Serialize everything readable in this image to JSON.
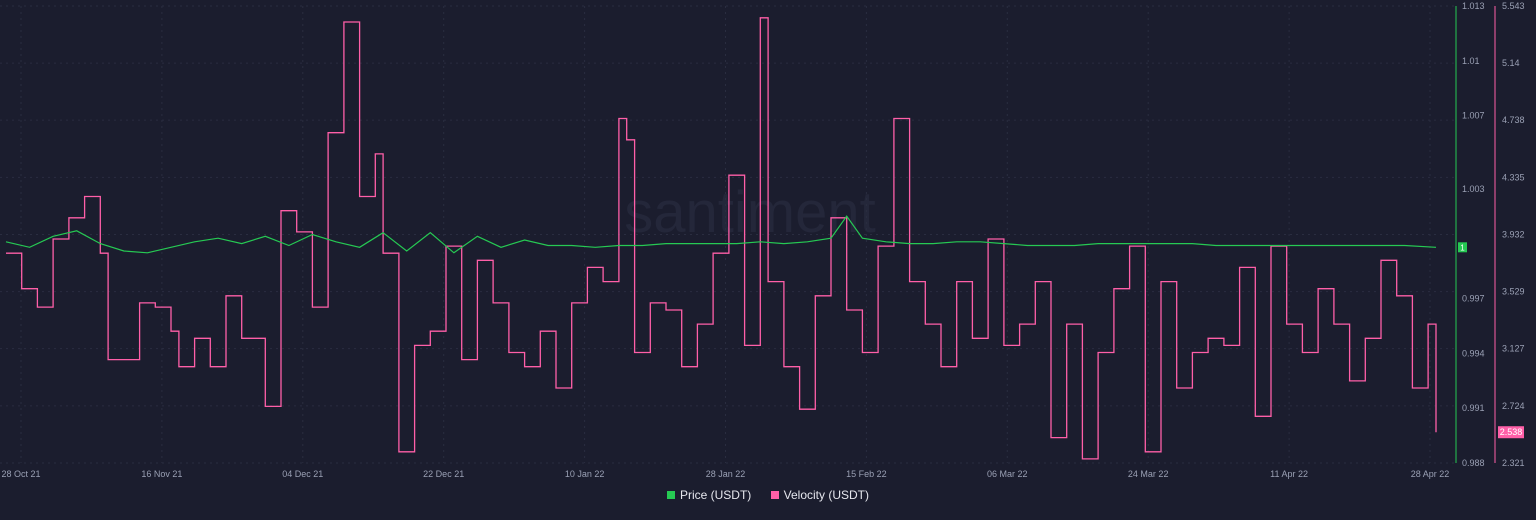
{
  "watermark": "santiment",
  "colors": {
    "background": "#1b1d2e",
    "price": "#26c953",
    "velocity": "#ff5fa8",
    "grid": "#2a2d40",
    "axis_text": "#9aa0b4"
  },
  "legend": {
    "price": "Price (USDT)",
    "velocity": "Velocity (USDT)"
  },
  "chart_data": {
    "type": "line",
    "x_ticks": [
      "28 Oct 21",
      "16 Nov 21",
      "04 Dec 21",
      "22 Dec 21",
      "10 Jan 22",
      "28 Jan 22",
      "15 Feb 22",
      "06 Mar 22",
      "24 Mar 22",
      "11 Apr 22",
      "28 Apr 22"
    ],
    "x_range": [
      "2021-10-28",
      "2022-04-28"
    ],
    "y_price": {
      "ticks": [
        "1.013",
        "1.01",
        "1.007",
        "1.003",
        "0.997",
        "0.994",
        "0.991",
        "0.988"
      ],
      "range": [
        0.988,
        1.013
      ]
    },
    "y_velocity": {
      "ticks": [
        "5.543",
        "5.14",
        "4.738",
        "4.335",
        "3.932",
        "3.529",
        "3.127",
        "2.724",
        "2.321"
      ],
      "range": [
        2.321,
        5.543
      ]
    },
    "last_price_label": "1",
    "last_velocity_label": "2.538",
    "series": [
      {
        "name": "Price (USDT)",
        "axis": "right-inner",
        "values": [
          [
            "2021-10-28",
            1.0001
          ],
          [
            "2021-10-31",
            0.9998
          ],
          [
            "2021-11-03",
            1.0004
          ],
          [
            "2021-11-06",
            1.0007
          ],
          [
            "2021-11-09",
            1.0
          ],
          [
            "2021-11-12",
            0.9996
          ],
          [
            "2021-11-15",
            0.9995
          ],
          [
            "2021-11-18",
            0.9998
          ],
          [
            "2021-11-21",
            1.0001
          ],
          [
            "2021-11-24",
            1.0003
          ],
          [
            "2021-11-27",
            1.0
          ],
          [
            "2021-11-30",
            1.0004
          ],
          [
            "2021-12-03",
            0.9999
          ],
          [
            "2021-12-06",
            1.0005
          ],
          [
            "2021-12-09",
            1.0001
          ],
          [
            "2021-12-12",
            0.9998
          ],
          [
            "2021-12-15",
            1.0006
          ],
          [
            "2021-12-18",
            0.9996
          ],
          [
            "2021-12-21",
            1.0006
          ],
          [
            "2021-12-24",
            0.9995
          ],
          [
            "2021-12-27",
            1.0004
          ],
          [
            "2021-12-30",
            0.9998
          ],
          [
            "2022-01-02",
            1.0002
          ],
          [
            "2022-01-05",
            0.9999
          ],
          [
            "2022-01-08",
            0.9999
          ],
          [
            "2022-01-11",
            0.9998
          ],
          [
            "2022-01-14",
            0.9999
          ],
          [
            "2022-01-17",
            0.9999
          ],
          [
            "2022-01-20",
            1.0
          ],
          [
            "2022-01-23",
            1.0
          ],
          [
            "2022-01-26",
            1.0
          ],
          [
            "2022-01-29",
            1.0
          ],
          [
            "2022-02-01",
            1.0001
          ],
          [
            "2022-02-04",
            1.0
          ],
          [
            "2022-02-07",
            1.0001
          ],
          [
            "2022-02-10",
            1.0003
          ],
          [
            "2022-02-12",
            1.0015
          ],
          [
            "2022-02-14",
            1.0003
          ],
          [
            "2022-02-17",
            1.0001
          ],
          [
            "2022-02-20",
            1.0
          ],
          [
            "2022-02-23",
            1.0
          ],
          [
            "2022-02-26",
            1.0001
          ],
          [
            "2022-03-01",
            1.0001
          ],
          [
            "2022-03-04",
            1.0
          ],
          [
            "2022-03-07",
            0.9999
          ],
          [
            "2022-03-10",
            0.9999
          ],
          [
            "2022-03-13",
            0.9999
          ],
          [
            "2022-03-16",
            1.0
          ],
          [
            "2022-03-19",
            1.0
          ],
          [
            "2022-03-22",
            1.0
          ],
          [
            "2022-03-25",
            1.0
          ],
          [
            "2022-03-28",
            1.0
          ],
          [
            "2022-03-31",
            0.9999
          ],
          [
            "2022-04-03",
            0.9999
          ],
          [
            "2022-04-06",
            0.9999
          ],
          [
            "2022-04-09",
            0.9999
          ],
          [
            "2022-04-12",
            0.9999
          ],
          [
            "2022-04-15",
            0.9999
          ],
          [
            "2022-04-18",
            0.9999
          ],
          [
            "2022-04-21",
            0.9999
          ],
          [
            "2022-04-24",
            0.9999
          ],
          [
            "2022-04-28",
            0.9998
          ]
        ]
      },
      {
        "name": "Velocity (USDT)",
        "axis": "right-outer",
        "values": [
          [
            "2021-10-28",
            3.8
          ],
          [
            "2021-10-30",
            3.55
          ],
          [
            "2021-11-01",
            3.42
          ],
          [
            "2021-11-03",
            3.9
          ],
          [
            "2021-11-05",
            4.05
          ],
          [
            "2021-11-07",
            4.2
          ],
          [
            "2021-11-09",
            3.8
          ],
          [
            "2021-11-10",
            3.05
          ],
          [
            "2021-11-12",
            3.05
          ],
          [
            "2021-11-14",
            3.45
          ],
          [
            "2021-11-16",
            3.42
          ],
          [
            "2021-11-18",
            3.25
          ],
          [
            "2021-11-19",
            3.0
          ],
          [
            "2021-11-21",
            3.2
          ],
          [
            "2021-11-23",
            3.0
          ],
          [
            "2021-11-25",
            3.5
          ],
          [
            "2021-11-27",
            3.2
          ],
          [
            "2021-11-29",
            3.2
          ],
          [
            "2021-11-30",
            2.72
          ],
          [
            "2021-12-02",
            4.1
          ],
          [
            "2021-12-04",
            3.95
          ],
          [
            "2021-12-06",
            3.42
          ],
          [
            "2021-12-08",
            4.65
          ],
          [
            "2021-12-10",
            5.43
          ],
          [
            "2021-12-12",
            4.2
          ],
          [
            "2021-12-14",
            4.5
          ],
          [
            "2021-12-15",
            3.8
          ],
          [
            "2021-12-17",
            2.4
          ],
          [
            "2021-12-19",
            3.15
          ],
          [
            "2021-12-21",
            3.25
          ],
          [
            "2021-12-23",
            3.85
          ],
          [
            "2021-12-25",
            3.05
          ],
          [
            "2021-12-27",
            3.75
          ],
          [
            "2021-12-29",
            3.45
          ],
          [
            "2021-12-31",
            3.1
          ],
          [
            "2022-01-02",
            3.0
          ],
          [
            "2022-01-04",
            3.25
          ],
          [
            "2022-01-06",
            2.85
          ],
          [
            "2022-01-08",
            3.45
          ],
          [
            "2022-01-10",
            3.7
          ],
          [
            "2022-01-12",
            3.6
          ],
          [
            "2022-01-14",
            4.75
          ],
          [
            "2022-01-15",
            4.6
          ],
          [
            "2022-01-16",
            3.1
          ],
          [
            "2022-01-18",
            3.45
          ],
          [
            "2022-01-20",
            3.4
          ],
          [
            "2022-01-22",
            3.0
          ],
          [
            "2022-01-24",
            3.3
          ],
          [
            "2022-01-26",
            3.8
          ],
          [
            "2022-01-28",
            4.35
          ],
          [
            "2022-01-30",
            3.15
          ],
          [
            "2022-02-01",
            5.46
          ],
          [
            "2022-02-02",
            3.6
          ],
          [
            "2022-02-04",
            3.0
          ],
          [
            "2022-02-06",
            2.7
          ],
          [
            "2022-02-08",
            3.5
          ],
          [
            "2022-02-10",
            4.05
          ],
          [
            "2022-02-12",
            3.4
          ],
          [
            "2022-02-14",
            3.1
          ],
          [
            "2022-02-16",
            3.85
          ],
          [
            "2022-02-18",
            4.75
          ],
          [
            "2022-02-20",
            3.6
          ],
          [
            "2022-02-22",
            3.3
          ],
          [
            "2022-02-24",
            3.0
          ],
          [
            "2022-02-26",
            3.6
          ],
          [
            "2022-02-28",
            3.2
          ],
          [
            "2022-03-02",
            3.9
          ],
          [
            "2022-03-04",
            3.15
          ],
          [
            "2022-03-06",
            3.3
          ],
          [
            "2022-03-08",
            3.6
          ],
          [
            "2022-03-10",
            2.5
          ],
          [
            "2022-03-12",
            3.3
          ],
          [
            "2022-03-14",
            2.35
          ],
          [
            "2022-03-16",
            3.1
          ],
          [
            "2022-03-18",
            3.55
          ],
          [
            "2022-03-20",
            3.85
          ],
          [
            "2022-03-22",
            2.4
          ],
          [
            "2022-03-24",
            3.6
          ],
          [
            "2022-03-26",
            2.85
          ],
          [
            "2022-03-28",
            3.1
          ],
          [
            "2022-03-30",
            3.2
          ],
          [
            "2022-04-01",
            3.15
          ],
          [
            "2022-04-03",
            3.7
          ],
          [
            "2022-04-05",
            2.65
          ],
          [
            "2022-04-07",
            3.85
          ],
          [
            "2022-04-09",
            3.3
          ],
          [
            "2022-04-11",
            3.1
          ],
          [
            "2022-04-13",
            3.55
          ],
          [
            "2022-04-15",
            3.3
          ],
          [
            "2022-04-17",
            2.9
          ],
          [
            "2022-04-19",
            3.2
          ],
          [
            "2022-04-21",
            3.75
          ],
          [
            "2022-04-23",
            3.5
          ],
          [
            "2022-04-25",
            2.85
          ],
          [
            "2022-04-27",
            3.3
          ],
          [
            "2022-04-28",
            2.538
          ]
        ]
      }
    ],
    "grid": true,
    "legend_position": "bottom-center"
  }
}
